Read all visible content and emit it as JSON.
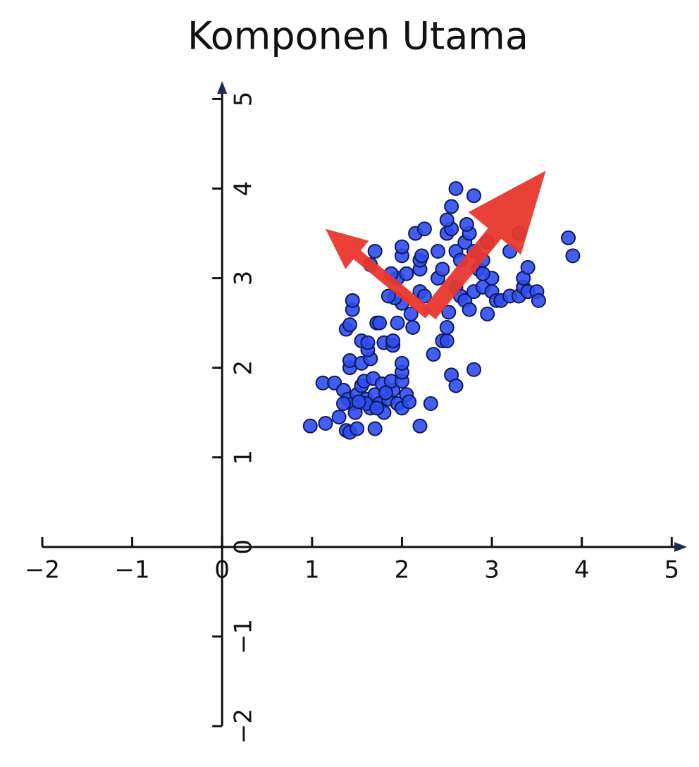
{
  "chart_data": {
    "type": "scatter",
    "title": "Komponen Utama",
    "x": [
      0.98,
      1.15,
      1.3,
      1.38,
      1.42,
      1.5,
      1.7,
      2.2,
      1.12,
      1.25,
      1.35,
      1.4,
      1.45,
      1.5,
      1.55,
      1.6,
      1.65,
      1.7,
      1.75,
      1.8,
      1.85,
      1.9,
      1.95,
      2.0,
      2.05,
      2.08,
      1.58,
      1.68,
      1.78,
      1.88,
      2.0,
      2.0,
      2.0,
      1.42,
      1.42,
      1.55,
      1.65,
      1.62,
      1.55,
      1.62,
      1.8,
      1.9,
      1.9,
      2.32,
      1.48,
      1.6,
      1.72,
      1.82,
      1.52,
      1.35,
      1.38,
      1.42,
      1.45,
      1.45,
      1.72,
      1.75,
      1.95,
      2.12,
      2.1,
      2.0,
      1.92,
      1.85,
      1.95,
      1.88,
      2.05,
      2.2,
      2.25,
      2.2,
      2.2,
      2.22,
      2.0,
      2.0,
      1.7,
      1.65,
      2.15,
      2.25,
      2.35,
      2.45,
      2.5,
      2.5,
      2.55,
      2.6,
      2.8,
      2.52,
      2.4,
      2.45,
      2.4,
      2.5,
      2.55,
      2.5,
      2.55,
      2.6,
      2.8,
      2.6,
      2.65,
      2.7,
      2.75,
      2.8,
      2.85,
      2.9,
      2.6,
      2.65,
      2.7,
      2.75,
      2.8,
      2.9,
      2.95,
      3.0,
      3.0,
      3.05,
      3.1,
      3.2,
      3.3,
      3.35,
      3.4,
      3.5,
      3.52,
      3.35,
      3.4,
      3.2,
      3.3,
      3.85,
      3.9,
      2.9,
      2.95,
      2.72
    ],
    "series": [
      {
        "color": "#2f4cf0",
        "values": [
          1.35,
          1.38,
          1.45,
          1.3,
          1.28,
          1.32,
          1.32,
          1.35,
          1.83,
          1.83,
          1.75,
          1.65,
          1.6,
          1.7,
          1.8,
          1.65,
          1.55,
          1.7,
          1.6,
          1.5,
          1.65,
          1.75,
          1.6,
          1.55,
          1.7,
          1.62,
          1.85,
          1.88,
          1.82,
          1.85,
          1.85,
          1.95,
          2.05,
          2.0,
          2.08,
          2.05,
          2.1,
          2.2,
          2.3,
          2.28,
          2.28,
          2.25,
          2.3,
          1.6,
          1.5,
          1.6,
          1.55,
          1.72,
          1.62,
          1.6,
          2.43,
          2.48,
          2.65,
          2.75,
          2.5,
          2.5,
          2.5,
          2.45,
          2.6,
          2.72,
          2.78,
          2.8,
          3.0,
          3.05,
          3.05,
          2.85,
          2.8,
          3.1,
          3.2,
          3.25,
          3.25,
          3.35,
          3.3,
          3.15,
          3.5,
          3.55,
          2.15,
          2.3,
          2.3,
          2.45,
          1.92,
          1.8,
          1.98,
          2.62,
          3.0,
          3.1,
          3.3,
          3.5,
          3.55,
          3.65,
          3.8,
          4.0,
          3.92,
          3.3,
          3.2,
          3.4,
          3.5,
          3.3,
          3.1,
          3.2,
          2.9,
          2.8,
          2.75,
          2.65,
          2.85,
          2.9,
          2.6,
          2.85,
          3.0,
          2.75,
          2.75,
          2.8,
          2.8,
          2.9,
          2.85,
          2.85,
          2.75,
          3.0,
          3.12,
          3.3,
          3.5,
          3.45,
          3.25,
          3.05,
          3.4,
          3.6
        ]
      }
    ],
    "arrows": [
      {
        "color": "#e8372c",
        "x": [
          2.3,
          3.6
        ],
        "y": [
          2.6,
          4.2
        ]
      },
      {
        "color": "#e8372c",
        "x": [
          2.3,
          1.15
        ],
        "y": [
          2.6,
          3.55
        ]
      }
    ],
    "xlim": [
      -2,
      5.17
    ],
    "ylim": [
      -2,
      5.2
    ],
    "xticks": [
      {
        "value": -2,
        "label": "−2"
      },
      {
        "value": -1,
        "label": "−1"
      },
      0,
      1,
      2,
      3,
      4,
      5
    ],
    "yticks": [
      {
        "value": -2,
        "label": "−2"
      },
      {
        "value": -1,
        "label": "−1"
      },
      0,
      1,
      2,
      3,
      4,
      5
    ]
  }
}
